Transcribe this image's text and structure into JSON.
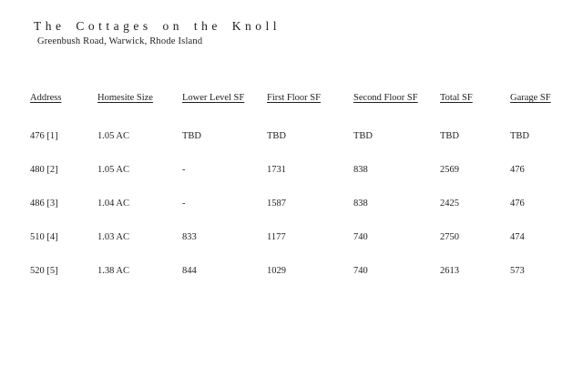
{
  "page": {
    "title": "The Cottages on the Knoll",
    "subtitle": "Greenbush Road, Warwick, Rhode Island"
  },
  "table": {
    "headers": [
      "Address",
      "Homesite Size",
      "Lower Level SF",
      "First Floor SF",
      "Second Floor SF",
      "Total SF",
      "Garage SF"
    ],
    "rows": [
      [
        "476 [1]",
        "1.05 AC",
        "TBD",
        "TBD",
        "TBD",
        "TBD",
        "TBD"
      ],
      [
        "480 [2]",
        "1.05 AC",
        "-",
        "1731",
        "838",
        "2569",
        "476"
      ],
      [
        "486 [3]",
        "1.04 AC",
        "-",
        "1587",
        "838",
        "2425",
        "476"
      ],
      [
        "510 [4]",
        "1.03 AC",
        "833",
        "1177",
        "740",
        "2750",
        "474"
      ],
      [
        "520 [5]",
        "1.38 AC",
        "844",
        "1029",
        "740",
        "2613",
        "573"
      ]
    ]
  },
  "colors": {
    "text": "#1f1f1f",
    "background": "#ffffff"
  }
}
